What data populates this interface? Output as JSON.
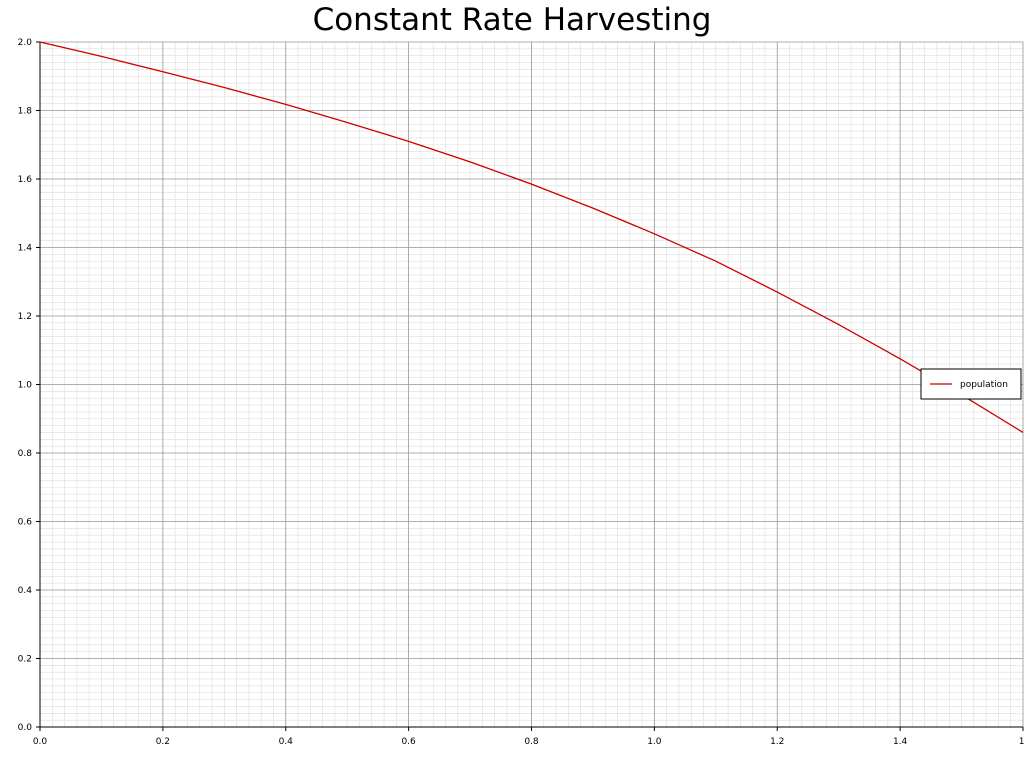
{
  "chart_data": {
    "type": "line",
    "title": "Constant Rate Harvesting",
    "xlabel": "",
    "ylabel": "",
    "xlim": [
      0,
      1.6
    ],
    "ylim": [
      0,
      2.0
    ],
    "x_ticks": [
      "0.0",
      "0.2",
      "0.4",
      "0.6",
      "0.8",
      "1.0",
      "1.2",
      "1.4",
      "1."
    ],
    "y_ticks": [
      "0.0",
      "0.2",
      "0.4",
      "0.6",
      "0.8",
      "1.0",
      "1.2",
      "1.4",
      "1.6",
      "1.8",
      "2.0"
    ],
    "grid": true,
    "legend_position": "right",
    "series": [
      {
        "name": "population",
        "color": "#cc0000",
        "x": [
          0.0,
          0.1,
          0.2,
          0.3,
          0.4,
          0.5,
          0.6,
          0.7,
          0.8,
          0.9,
          1.0,
          1.1,
          1.2,
          1.3,
          1.4,
          1.5,
          1.6
        ],
        "y": [
          2.0,
          1.958,
          1.913,
          1.867,
          1.818,
          1.765,
          1.71,
          1.65,
          1.585,
          1.515,
          1.44,
          1.36,
          1.27,
          1.175,
          1.075,
          0.97,
          0.86
        ]
      }
    ]
  }
}
